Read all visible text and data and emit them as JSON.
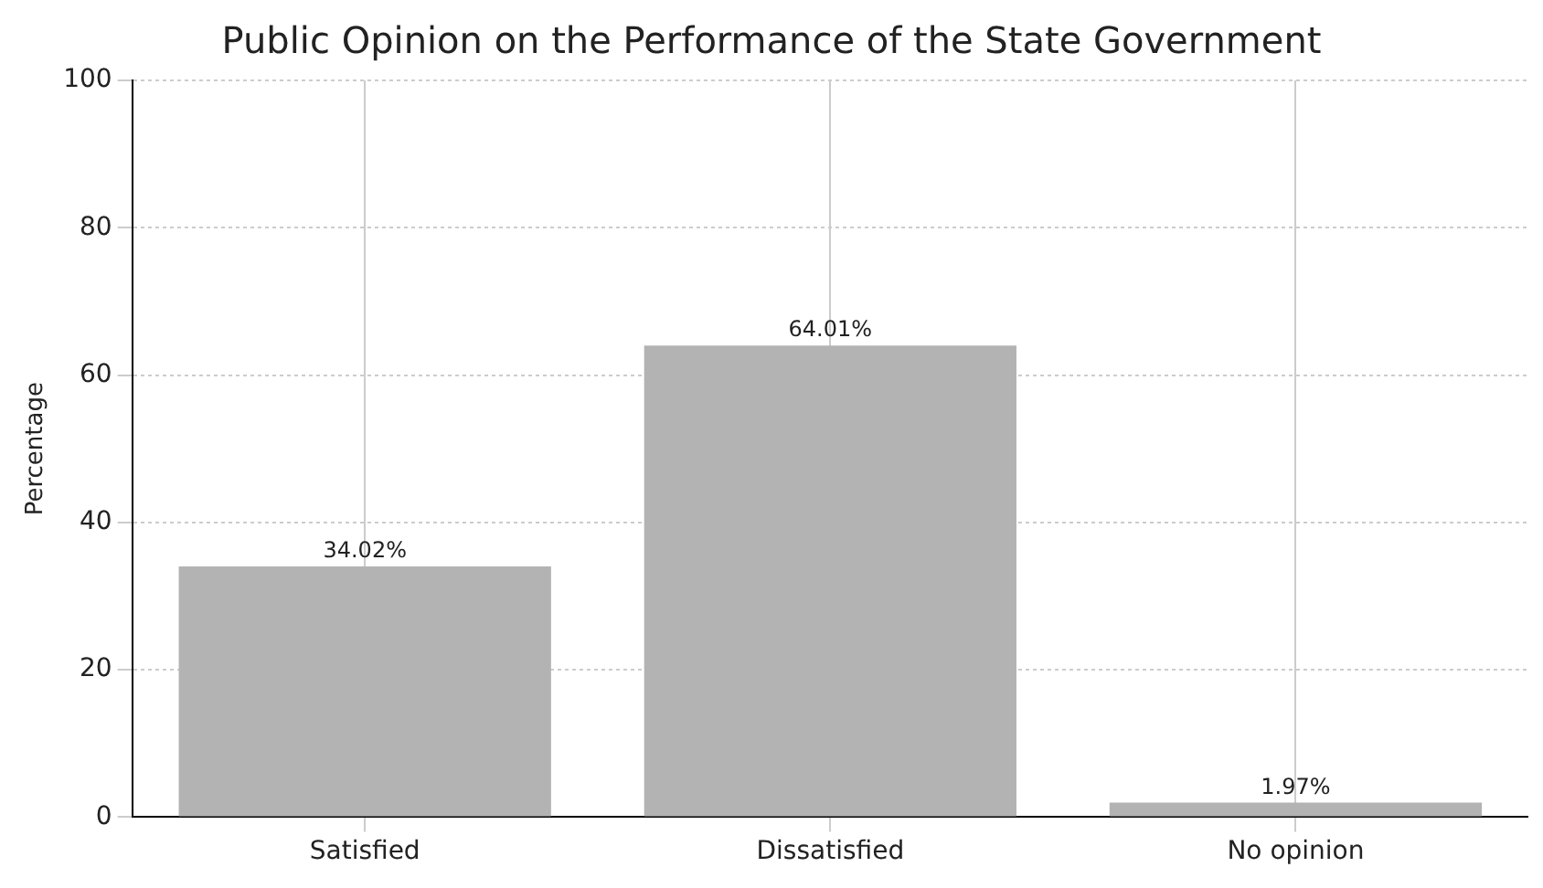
{
  "chart_data": {
    "type": "bar",
    "title": "Public Opinion on the Performance of the State Government",
    "ylabel": "Percentage",
    "categories": [
      "Satisfied",
      "Dissatisfied",
      "No opinion"
    ],
    "values": [
      34.02,
      64.01,
      1.97
    ],
    "color": "#b3b3b3",
    "value_labels": [
      "34.02%",
      "64.01%",
      "1.97%"
    ],
    "ylim": [
      0,
      100
    ],
    "yticks": [
      0,
      20,
      40,
      60,
      80,
      100
    ],
    "grid": true
  }
}
